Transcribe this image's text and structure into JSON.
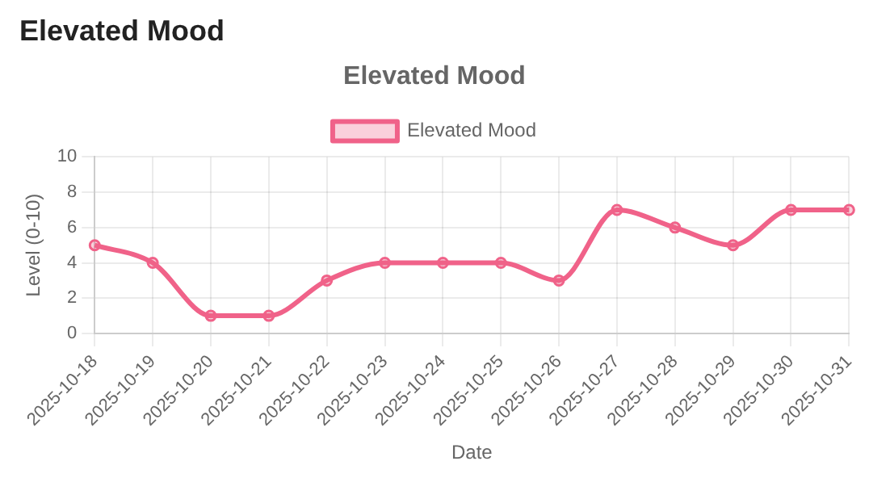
{
  "chart_data": {
    "type": "line",
    "title": "Elevated Mood",
    "xlabel": "Date",
    "ylabel": "Level (0-10)",
    "annotations": [
      "Elevated Mood"
    ],
    "categories": [
      "2025-10-18",
      "2025-10-19",
      "2025-10-20",
      "2025-10-21",
      "2025-10-22",
      "2025-10-23",
      "2025-10-24",
      "2025-10-25",
      "2025-10-26",
      "2025-10-27",
      "2025-10-28",
      "2025-10-29",
      "2025-10-30",
      "2025-10-31"
    ],
    "series": [
      {
        "name": "Elevated Mood",
        "color": "#f06289",
        "values": [
          5,
          4,
          1,
          1,
          3,
          4,
          4,
          4,
          3,
          7,
          6,
          5,
          7,
          7
        ]
      }
    ],
    "ylim": [
      0,
      10
    ],
    "yticks": [
      0,
      2,
      4,
      6,
      8,
      10
    ],
    "grid": true,
    "legend": "top",
    "marker": "circle",
    "line_style": "solid"
  }
}
